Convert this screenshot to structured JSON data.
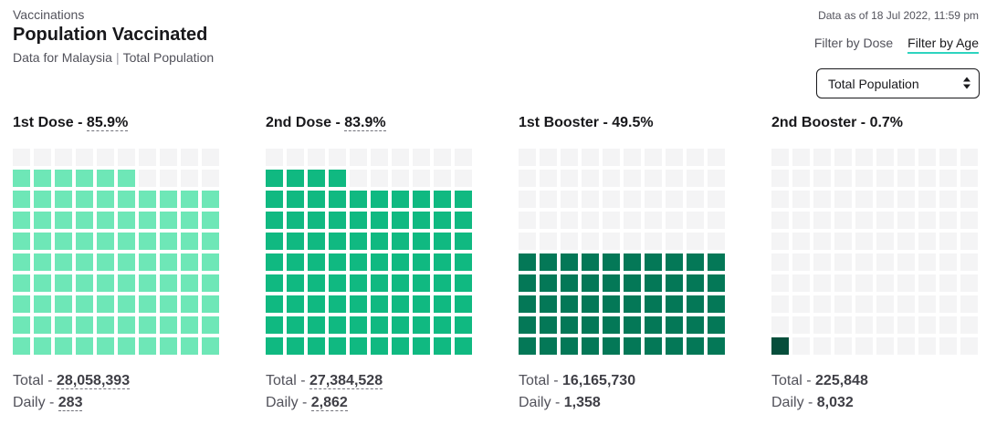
{
  "header": {
    "eyebrow": "Vaccinations",
    "title": "Population Vaccinated",
    "subtitle_left": "Data for Malaysia",
    "subtitle_right": "Total Population",
    "as_of": "Data as of 18 Jul 2022, 11:59 pm"
  },
  "filters": {
    "by_dose": "Filter by Dose",
    "by_age": "Filter by Age",
    "active": "by_age"
  },
  "population_select": {
    "value": "Total Population"
  },
  "labels": {
    "total": "Total",
    "daily": "Daily"
  },
  "chart_data": [
    {
      "type": "waffle",
      "name": "1st Dose",
      "percent": 85.9,
      "percent_label": "85.9%",
      "total": "28,058,393",
      "daily": "283",
      "color": "#6ee7b7",
      "empty_color": "#f4f4f5",
      "cells": 100
    },
    {
      "type": "waffle",
      "name": "2nd Dose",
      "percent": 83.9,
      "percent_label": "83.9%",
      "total": "27,384,528",
      "daily": "2,862",
      "color": "#10b981",
      "empty_color": "#f4f4f5",
      "cells": 100
    },
    {
      "type": "waffle",
      "name": "1st Booster",
      "percent": 49.5,
      "percent_label": "49.5%",
      "total": "16,165,730",
      "daily": "1,358",
      "color": "#047857",
      "empty_color": "#f4f4f5",
      "cells": 100
    },
    {
      "type": "waffle",
      "name": "2nd Booster",
      "percent": 0.7,
      "percent_label": "0.7%",
      "total": "225,848",
      "daily": "8,032",
      "color": "#064e3b",
      "empty_color": "#f4f4f5",
      "cells": 100
    }
  ]
}
